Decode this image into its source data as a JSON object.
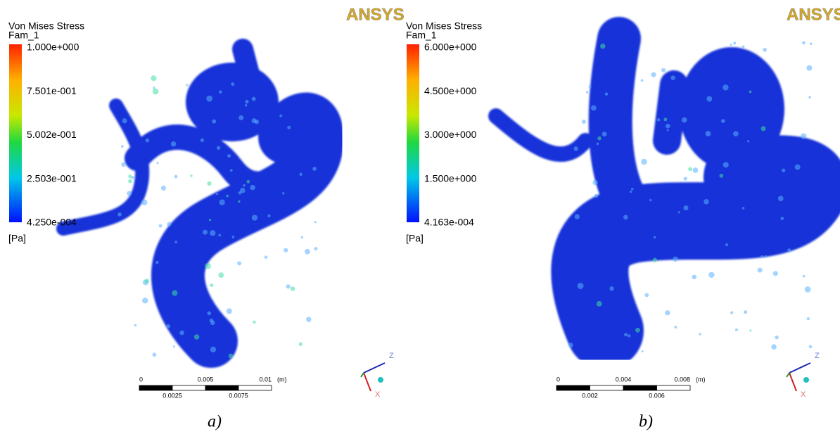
{
  "panels": [
    {
      "logo": "ANSYS",
      "legend": {
        "title": "Von Mises Stress",
        "subtitle": "Fam_1",
        "labels": [
          "1.000e+000",
          "7.501e-001",
          "5.002e-001",
          "2.503e-001",
          "4.250e-004"
        ],
        "unit": "[Pa]"
      },
      "scale_bar": {
        "top_labels": [
          "0",
          "0.005",
          "0.01"
        ],
        "bottom_labels": [
          "0.0025",
          "0.0075"
        ],
        "unit": "(m)"
      },
      "triad": {
        "axes": [
          "Z",
          "X"
        ]
      },
      "caption": "a)"
    },
    {
      "logo": "ANSYS",
      "legend": {
        "title": "Von Mises Stress",
        "subtitle": "Fam_1",
        "labels": [
          "6.000e+000",
          "4.500e+000",
          "3.000e+000",
          "1.500e+000",
          "4.163e-004"
        ],
        "unit": "[Pa]"
      },
      "scale_bar": {
        "top_labels": [
          "0",
          "0.004",
          "0.008"
        ],
        "bottom_labels": [
          "0.002",
          "0.006"
        ],
        "unit": "(m)"
      },
      "triad": {
        "axes": [
          "Z",
          "X"
        ]
      },
      "caption": "b)"
    }
  ]
}
